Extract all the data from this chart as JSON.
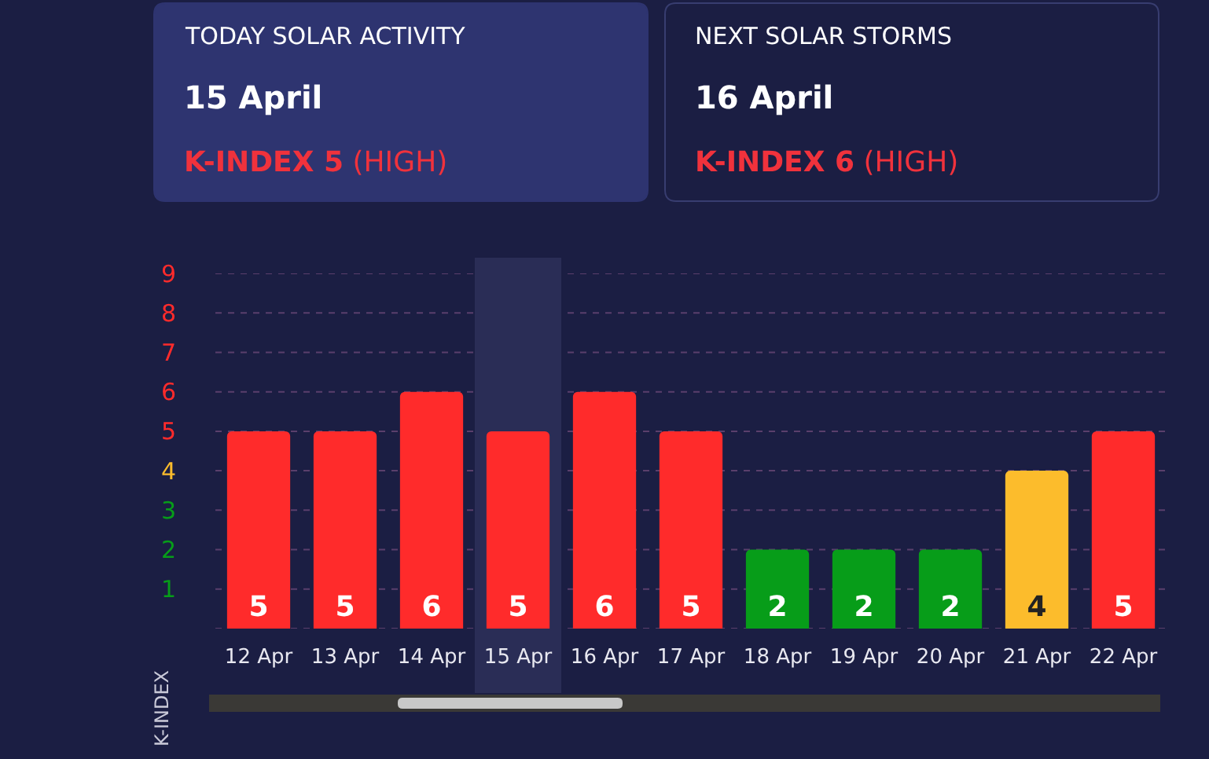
{
  "chart_data": {
    "type": "bar",
    "annotations": [
      "TODAY SOLAR ACTIVITY",
      "15 April",
      "K-INDEX 5",
      "(HIGH)",
      "NEXT SOLAR STORMS",
      "16 April",
      "K-INDEX 6",
      "(HIGH)"
    ],
    "ylabel": "K-INDEX",
    "categories": [
      "12 Apr",
      "13 Apr",
      "14 Apr",
      "15 Apr",
      "16 Apr",
      "17 Apr",
      "18 Apr",
      "19 Apr",
      "20 Apr",
      "21 Apr",
      "22 Apr"
    ],
    "values": [
      5,
      5,
      6,
      5,
      6,
      5,
      2,
      2,
      2,
      4,
      5
    ],
    "colors": [
      "#ff2b2b",
      "#ff2b2b",
      "#ff2b2b",
      "#ff2b2b",
      "#ff2b2b",
      "#ff2b2b",
      "#079d19",
      "#079d19",
      "#079d19",
      "#fcbc2c",
      "#ff2b2b"
    ],
    "data_labels": true,
    "ylim": [
      0,
      9
    ],
    "yticks": [
      {
        "value": 0,
        "label": null
      },
      1,
      2,
      3,
      4,
      5,
      6,
      7,
      8,
      9
    ],
    "grid": "y",
    "bands": [
      {
        "axis": "x",
        "from": "15 Apr",
        "to": "15 Apr",
        "color": "#2a2d56"
      }
    ]
  }
}
